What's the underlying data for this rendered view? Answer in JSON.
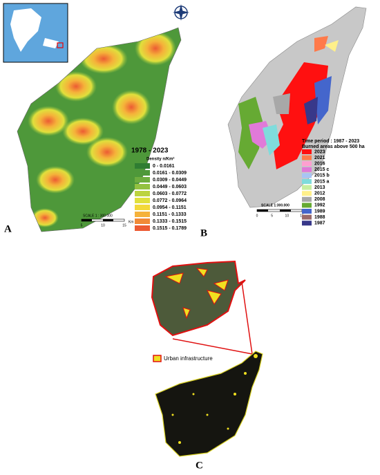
{
  "panel_a": {
    "label": "A",
    "legend_title": "1978 - 2023",
    "legend_subtitle": "Density n/Km²",
    "classes": [
      {
        "label": "0 - 0.0161",
        "color": "#2f7d32"
      },
      {
        "label": "0.0161 - 0.0309",
        "color": "#4e983a"
      },
      {
        "label": "0.0309 - 0.0449",
        "color": "#6ead3f"
      },
      {
        "label": "0.0449 - 0.0603",
        "color": "#93c141"
      },
      {
        "label": "0.0603 - 0.0772",
        "color": "#bcd33f"
      },
      {
        "label": "0.0772 - 0.0964",
        "color": "#e0e03c"
      },
      {
        "label": "0.0954 - 0.1151",
        "color": "#f3d93a"
      },
      {
        "label": "0.1151 - 0.1333",
        "color": "#f5b23a"
      },
      {
        "label": "0.1333 - 0.1515",
        "color": "#f18a37"
      },
      {
        "label": "0.1515 - 0.1789",
        "color": "#ec5b33"
      }
    ],
    "scale": {
      "title": "SCALE  1 : 300.000",
      "ticks": [
        "5",
        "10",
        "15"
      ],
      "unit": "Km"
    }
  },
  "panel_b": {
    "label": "B",
    "legend_title": "Time period : 1987 - 2023",
    "legend_subtitle": "Burned areas above 500 ha",
    "classes": [
      {
        "label": "2023",
        "color": "#ff1010"
      },
      {
        "label": "2021",
        "color": "#ff7a4a"
      },
      {
        "label": "2016",
        "color": "#ff9fd0"
      },
      {
        "label": "2015 c",
        "color": "#e07ad8"
      },
      {
        "label": "2015 b",
        "color": "#a8c4f4"
      },
      {
        "label": "2015 a",
        "color": "#7fdcdc"
      },
      {
        "label": "2013",
        "color": "#c8eea0"
      },
      {
        "label": "2012",
        "color": "#fff08a"
      },
      {
        "label": "2008",
        "color": "#a8a8a8"
      },
      {
        "label": "1992",
        "color": "#66aa33"
      },
      {
        "label": "1989",
        "color": "#4466cc"
      },
      {
        "label": "1988",
        "color": "#9a6a6a"
      },
      {
        "label": "1987",
        "color": "#38388a"
      }
    ],
    "scale": {
      "title": "SCALE      1:300.000",
      "ticks": [
        "0",
        "5",
        "10",
        "15"
      ],
      "unit": "Km"
    }
  },
  "panel_c": {
    "label": "C",
    "legend_label": "Urban infrastructure"
  }
}
